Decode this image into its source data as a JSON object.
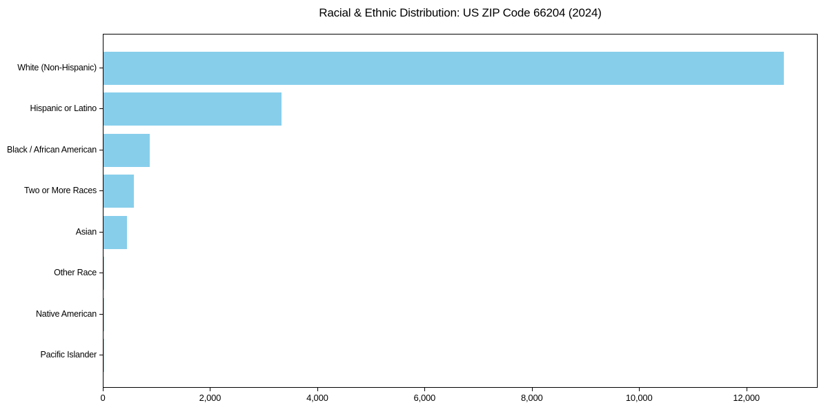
{
  "figure": {
    "background": "#ffffff"
  },
  "chart_data": {
    "type": "bar",
    "orientation": "horizontal",
    "title": "Racial & Ethnic Distribution: US ZIP Code 66204 (2024)",
    "xlabel": "",
    "ylabel": "",
    "categories": [
      "White (Non-Hispanic)",
      "Hispanic or Latino",
      "Black / African American",
      "Two or More Races",
      "Asian",
      "Other Race",
      "Native American",
      "Pacific Islander"
    ],
    "values": [
      12690,
      3320,
      860,
      570,
      440,
      15,
      6,
      2
    ],
    "xlim": [
      0,
      13330
    ],
    "xticks": {
      "values": [
        0,
        2000,
        4000,
        6000,
        8000,
        10000,
        12000
      ],
      "labels": [
        "0",
        "2,000",
        "4,000",
        "6,000",
        "8,000",
        "10,000",
        "12,000"
      ]
    },
    "bar_color": "#87CEEB",
    "grid": false,
    "legend_position": "none"
  }
}
